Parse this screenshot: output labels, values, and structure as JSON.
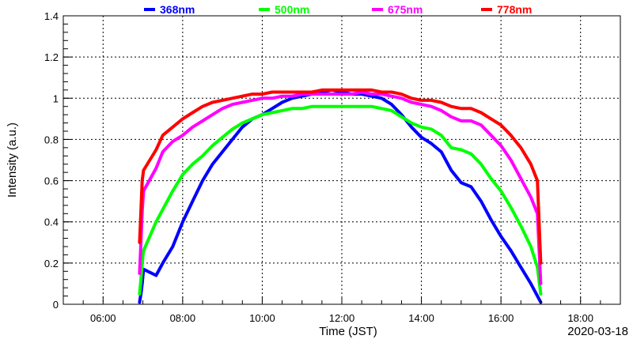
{
  "chart_data": {
    "type": "scatter",
    "xlabel": "Time (JST)",
    "ylabel": "Intensity (a.u.)",
    "date_label": "2020-03-18",
    "xlim": [
      "05:00",
      "19:00"
    ],
    "ylim": [
      0,
      1.4
    ],
    "grid": true,
    "legend_position": "top",
    "x_ticks": [
      "06:00",
      "08:00",
      "10:00",
      "12:00",
      "14:00",
      "16:00",
      "18:00"
    ],
    "y_ticks": [
      "0",
      "0.2",
      "0.4",
      "0.6",
      "0.8",
      "1",
      "1.2",
      "1.4"
    ],
    "series": [
      {
        "name": "368nm",
        "color": "#0000ff",
        "x": [
          "06:55",
          "06:57",
          "06:59",
          "07:01",
          "07:20",
          "07:30",
          "07:45",
          "08:00",
          "08:15",
          "08:30",
          "08:45",
          "09:00",
          "09:15",
          "09:30",
          "09:45",
          "10:00",
          "10:15",
          "10:30",
          "10:45",
          "11:00",
          "11:15",
          "11:30",
          "11:45",
          "12:00",
          "12:15",
          "12:30",
          "12:45",
          "13:00",
          "13:15",
          "13:30",
          "13:45",
          "14:00",
          "14:15",
          "14:30",
          "14:45",
          "15:00",
          "15:15",
          "15:30",
          "15:45",
          "16:00",
          "16:15",
          "16:30",
          "16:45",
          "16:55",
          "17:00"
        ],
        "y": [
          0.01,
          0.05,
          0.1,
          0.17,
          0.14,
          0.2,
          0.28,
          0.4,
          0.5,
          0.6,
          0.68,
          0.74,
          0.8,
          0.86,
          0.9,
          0.92,
          0.95,
          0.98,
          1.0,
          1.01,
          1.02,
          1.03,
          1.04,
          1.03,
          1.02,
          1.02,
          1.01,
          1.0,
          0.97,
          0.92,
          0.86,
          0.81,
          0.78,
          0.74,
          0.65,
          0.59,
          0.57,
          0.5,
          0.41,
          0.33,
          0.26,
          0.18,
          0.1,
          0.04,
          0.01
        ]
      },
      {
        "name": "500nm",
        "color": "#00ff00",
        "x": [
          "06:55",
          "06:57",
          "06:59",
          "07:01",
          "07:20",
          "07:30",
          "07:45",
          "08:00",
          "08:15",
          "08:30",
          "08:45",
          "09:00",
          "09:15",
          "09:30",
          "09:45",
          "10:00",
          "10:15",
          "10:30",
          "10:45",
          "11:00",
          "11:15",
          "11:30",
          "11:45",
          "12:00",
          "12:15",
          "12:30",
          "12:45",
          "13:00",
          "13:15",
          "13:30",
          "13:45",
          "14:00",
          "14:15",
          "14:30",
          "14:45",
          "15:00",
          "15:15",
          "15:30",
          "15:45",
          "16:00",
          "16:15",
          "16:30",
          "16:45",
          "16:55",
          "17:00"
        ],
        "y": [
          0.05,
          0.12,
          0.2,
          0.26,
          0.4,
          0.46,
          0.55,
          0.63,
          0.68,
          0.72,
          0.77,
          0.81,
          0.85,
          0.88,
          0.9,
          0.92,
          0.93,
          0.94,
          0.95,
          0.95,
          0.96,
          0.96,
          0.96,
          0.96,
          0.96,
          0.96,
          0.96,
          0.95,
          0.94,
          0.91,
          0.88,
          0.86,
          0.85,
          0.82,
          0.76,
          0.75,
          0.73,
          0.68,
          0.61,
          0.55,
          0.47,
          0.38,
          0.28,
          0.18,
          0.05
        ]
      },
      {
        "name": "675nm",
        "color": "#ff00ff",
        "x": [
          "06:55",
          "06:57",
          "06:59",
          "07:01",
          "07:20",
          "07:30",
          "07:45",
          "08:00",
          "08:15",
          "08:30",
          "08:45",
          "09:00",
          "09:15",
          "09:30",
          "09:45",
          "10:00",
          "10:15",
          "10:30",
          "10:45",
          "11:00",
          "11:15",
          "11:30",
          "11:45",
          "12:00",
          "12:15",
          "12:30",
          "12:45",
          "13:00",
          "13:15",
          "13:30",
          "13:45",
          "14:00",
          "14:15",
          "14:30",
          "14:45",
          "15:00",
          "15:15",
          "15:30",
          "15:45",
          "16:00",
          "16:15",
          "16:30",
          "16:45",
          "16:55",
          "17:00"
        ],
        "y": [
          0.15,
          0.3,
          0.45,
          0.55,
          0.66,
          0.74,
          0.79,
          0.82,
          0.86,
          0.89,
          0.92,
          0.95,
          0.97,
          0.98,
          0.99,
          1.0,
          1.0,
          1.01,
          1.01,
          1.02,
          1.02,
          1.02,
          1.02,
          1.02,
          1.02,
          1.03,
          1.02,
          1.02,
          1.01,
          1.0,
          0.98,
          0.97,
          0.96,
          0.94,
          0.91,
          0.89,
          0.89,
          0.87,
          0.82,
          0.77,
          0.7,
          0.61,
          0.52,
          0.44,
          0.1
        ]
      },
      {
        "name": "778nm",
        "color": "#ff0000",
        "x": [
          "06:55",
          "06:57",
          "06:59",
          "07:01",
          "07:20",
          "07:30",
          "07:45",
          "08:00",
          "08:15",
          "08:30",
          "08:45",
          "09:00",
          "09:15",
          "09:30",
          "09:45",
          "10:00",
          "10:15",
          "10:30",
          "10:45",
          "11:00",
          "11:15",
          "11:30",
          "11:45",
          "12:00",
          "12:15",
          "12:30",
          "12:45",
          "13:00",
          "13:15",
          "13:30",
          "13:45",
          "14:00",
          "14:15",
          "14:30",
          "14:45",
          "15:00",
          "15:15",
          "15:30",
          "15:45",
          "16:00",
          "16:15",
          "16:30",
          "16:45",
          "16:55",
          "17:00"
        ],
        "y": [
          0.3,
          0.45,
          0.6,
          0.65,
          0.75,
          0.82,
          0.86,
          0.9,
          0.93,
          0.96,
          0.98,
          0.99,
          1.0,
          1.01,
          1.02,
          1.02,
          1.03,
          1.03,
          1.03,
          1.03,
          1.03,
          1.04,
          1.04,
          1.04,
          1.04,
          1.04,
          1.04,
          1.03,
          1.03,
          1.02,
          1.0,
          0.99,
          0.99,
          0.98,
          0.96,
          0.95,
          0.95,
          0.93,
          0.9,
          0.87,
          0.82,
          0.76,
          0.68,
          0.6,
          0.2
        ]
      }
    ]
  }
}
